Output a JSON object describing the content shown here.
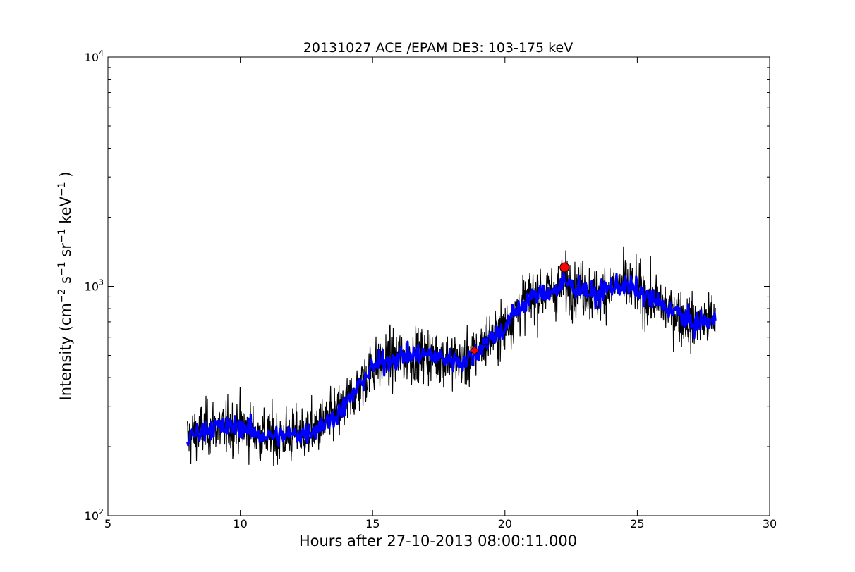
{
  "chart_data": {
    "type": "line",
    "title": "20131027 ACE /EPAM DE3: 103-175 keV",
    "xlabel": "Hours after 27-10-2013 08:00:11.000",
    "ylabel": {
      "base": "Intensity (cm",
      "parts": [
        {
          "text": "Intensity (cm",
          "sup": false
        },
        {
          "text": "−2",
          "sup": true
        },
        {
          "text": " s",
          "sup": false
        },
        {
          "text": "−1",
          "sup": true
        },
        {
          "text": " sr",
          "sup": false
        },
        {
          "text": "−1",
          "sup": true
        },
        {
          "text": " keV",
          "sup": false
        },
        {
          "text": "−1",
          "sup": true
        },
        {
          "text": " )",
          "sup": false
        }
      ]
    },
    "xlim": [
      5,
      30
    ],
    "ylim": [
      100,
      10000
    ],
    "yscale": "log",
    "grid": false,
    "x_ticks": [
      5,
      10,
      15,
      20,
      25,
      30
    ],
    "y_ticks": [
      {
        "value": 100,
        "base": "10",
        "exp": "2"
      },
      {
        "value": 1000,
        "base": "10",
        "exp": "3"
      },
      {
        "value": 10000,
        "base": "10",
        "exp": "4"
      }
    ],
    "series": [
      {
        "role": "raw",
        "color": "#000000",
        "noise": 0.1,
        "x_start": 8.0,
        "x_end": 27.95,
        "anchors": [
          [
            8.0,
            215
          ],
          [
            8.5,
            235
          ],
          [
            9.0,
            245
          ],
          [
            9.5,
            240
          ],
          [
            10.0,
            250
          ],
          [
            10.5,
            230
          ],
          [
            11.0,
            222
          ],
          [
            11.5,
            222
          ],
          [
            12.0,
            225
          ],
          [
            12.5,
            230
          ],
          [
            13.0,
            245
          ],
          [
            13.5,
            268
          ],
          [
            14.0,
            305
          ],
          [
            14.5,
            370
          ],
          [
            15.0,
            445
          ],
          [
            15.5,
            475
          ],
          [
            16.0,
            490
          ],
          [
            16.5,
            500
          ],
          [
            17.0,
            505
          ],
          [
            17.5,
            490
          ],
          [
            18.0,
            480
          ],
          [
            18.5,
            470
          ],
          [
            18.8,
            500
          ],
          [
            19.2,
            560
          ],
          [
            19.5,
            600
          ],
          [
            20.0,
            660
          ],
          [
            20.5,
            800
          ],
          [
            21.0,
            900
          ],
          [
            21.5,
            940
          ],
          [
            22.0,
            970
          ],
          [
            22.3,
            1040
          ],
          [
            22.6,
            990
          ],
          [
            23.0,
            980
          ],
          [
            23.4,
            890
          ],
          [
            23.7,
            960
          ],
          [
            24.0,
            990
          ],
          [
            24.5,
            1010
          ],
          [
            25.0,
            960
          ],
          [
            25.5,
            880
          ],
          [
            26.0,
            820
          ],
          [
            26.5,
            770
          ],
          [
            27.0,
            690
          ],
          [
            27.5,
            700
          ],
          [
            27.95,
            710
          ]
        ]
      },
      {
        "role": "smoothed",
        "color": "#0000ff",
        "noise": 0.04,
        "x_start": 8.0,
        "x_end": 27.95,
        "anchors": [
          [
            8.0,
            215
          ],
          [
            8.5,
            235
          ],
          [
            9.0,
            245
          ],
          [
            9.5,
            240
          ],
          [
            10.0,
            250
          ],
          [
            10.5,
            230
          ],
          [
            11.0,
            222
          ],
          [
            11.5,
            222
          ],
          [
            12.0,
            225
          ],
          [
            12.5,
            230
          ],
          [
            13.0,
            245
          ],
          [
            13.5,
            268
          ],
          [
            14.0,
            305
          ],
          [
            14.5,
            370
          ],
          [
            15.0,
            445
          ],
          [
            15.5,
            475
          ],
          [
            16.0,
            490
          ],
          [
            16.5,
            500
          ],
          [
            17.0,
            505
          ],
          [
            17.5,
            490
          ],
          [
            18.0,
            480
          ],
          [
            18.5,
            470
          ],
          [
            18.8,
            500
          ],
          [
            19.2,
            560
          ],
          [
            19.5,
            600
          ],
          [
            20.0,
            660
          ],
          [
            20.5,
            800
          ],
          [
            21.0,
            900
          ],
          [
            21.5,
            940
          ],
          [
            22.0,
            970
          ],
          [
            22.3,
            1040
          ],
          [
            22.6,
            990
          ],
          [
            23.0,
            980
          ],
          [
            23.4,
            890
          ],
          [
            23.7,
            960
          ],
          [
            24.0,
            990
          ],
          [
            24.5,
            1010
          ],
          [
            25.0,
            960
          ],
          [
            25.5,
            880
          ],
          [
            26.0,
            820
          ],
          [
            26.5,
            770
          ],
          [
            27.0,
            690
          ],
          [
            27.5,
            700
          ],
          [
            27.95,
            710
          ]
        ]
      }
    ],
    "markers": [
      {
        "shape": "diamond",
        "x": 18.85,
        "y": 525,
        "color": "#ff0000"
      },
      {
        "shape": "square",
        "x": 19.25,
        "y": 575,
        "color": "#0000ff"
      },
      {
        "shape": "circle",
        "x": 22.25,
        "y": 1210,
        "color": "#ff0000"
      }
    ]
  }
}
